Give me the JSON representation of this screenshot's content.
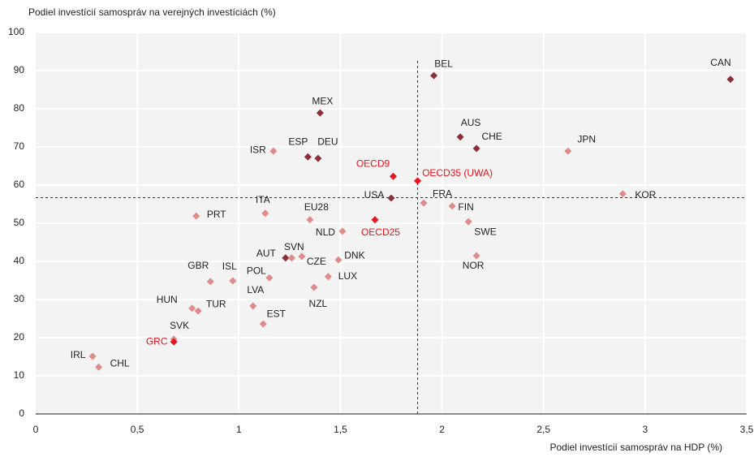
{
  "chart_data": {
    "type": "scatter",
    "ylabel": "Podiel investícií samospráv na verejných investíciách (%)",
    "xlabel": "Podiel investícií samospráv na HDP (%)",
    "xlim": [
      0,
      3.5
    ],
    "ylim": [
      0,
      100
    ],
    "xticks": [
      0,
      {
        "value": 0.5,
        "label": "0,5"
      },
      1,
      {
        "value": 1.5,
        "label": "1,5"
      },
      2,
      {
        "value": 2.5,
        "label": "2,5"
      },
      3,
      {
        "value": 3.5,
        "label": "3,5"
      }
    ],
    "yticks": [
      0,
      10,
      20,
      30,
      40,
      50,
      60,
      70,
      80,
      90,
      100
    ],
    "grid": true,
    "reference_lines": {
      "x": 1.88,
      "y": 56.7
    },
    "points": [
      {
        "label": "CAN",
        "x": 3.42,
        "y": 87.7,
        "color": "#8c2f39"
      },
      {
        "label": "BEL",
        "x": 1.96,
        "y": 88.7,
        "color": "#8c2f39"
      },
      {
        "label": "MEX",
        "x": 1.4,
        "y": 78.9,
        "color": "#8c2f39"
      },
      {
        "label": "AUS",
        "x": 2.09,
        "y": 72.6,
        "color": "#8c2f39"
      },
      {
        "label": "CHE",
        "x": 2.17,
        "y": 69.6,
        "color": "#8c2f39"
      },
      {
        "label": "JPN",
        "x": 2.62,
        "y": 68.9,
        "color": "#e08a8a"
      },
      {
        "label": "ISR",
        "x": 1.17,
        "y": 68.9,
        "color": "#e08a8a"
      },
      {
        "label": "ESP",
        "x": 1.34,
        "y": 67.4,
        "color": "#8c2f39"
      },
      {
        "label": "DEU",
        "x": 1.39,
        "y": 67.0,
        "color": "#8c2f39"
      },
      {
        "label": "OECD9",
        "x": 1.76,
        "y": 62.3,
        "color": "#e8141e"
      },
      {
        "label": "OECD35 (UWA)",
        "x": 1.88,
        "y": 61.1,
        "color": "#e8141e"
      },
      {
        "label": "USA",
        "x": 1.75,
        "y": 56.6,
        "color": "#8c2f39"
      },
      {
        "label": "FRA",
        "x": 1.91,
        "y": 55.3,
        "color": "#e08a8a"
      },
      {
        "label": "KOR",
        "x": 2.89,
        "y": 57.7,
        "color": "#e08a8a"
      },
      {
        "label": "ITA",
        "x": 1.13,
        "y": 52.6,
        "color": "#e08a8a"
      },
      {
        "label": "PRT",
        "x": 0.79,
        "y": 51.9,
        "color": "#e08a8a"
      },
      {
        "label": "EU28",
        "x": 1.35,
        "y": 50.9,
        "color": "#e08a8a"
      },
      {
        "label": "OECD25",
        "x": 1.67,
        "y": 50.9,
        "color": "#e8141e"
      },
      {
        "label": "FIN",
        "x": 2.05,
        "y": 54.5,
        "color": "#e08a8a"
      },
      {
        "label": "SWE",
        "x": 2.13,
        "y": 50.4,
        "color": "#e08a8a"
      },
      {
        "label": "NLD",
        "x": 1.51,
        "y": 47.9,
        "color": "#e08a8a"
      },
      {
        "label": "NOR",
        "x": 2.17,
        "y": 41.5,
        "color": "#e08a8a"
      },
      {
        "label": "AUT",
        "x": 1.23,
        "y": 40.9,
        "color": "#8c2f39"
      },
      {
        "label": "SVN",
        "x": 1.26,
        "y": 40.9,
        "color": "#e08a8a"
      },
      {
        "label": "CZE",
        "x": 1.31,
        "y": 41.3,
        "color": "#e08a8a"
      },
      {
        "label": "DNK",
        "x": 1.49,
        "y": 40.4,
        "color": "#e08a8a"
      },
      {
        "label": "POL",
        "x": 1.15,
        "y": 35.7,
        "color": "#e08a8a"
      },
      {
        "label": "LUX",
        "x": 1.44,
        "y": 36.0,
        "color": "#e08a8a"
      },
      {
        "label": "GBR",
        "x": 0.86,
        "y": 34.7,
        "color": "#e08a8a"
      },
      {
        "label": "ISL",
        "x": 0.97,
        "y": 34.9,
        "color": "#e08a8a"
      },
      {
        "label": "NZL",
        "x": 1.37,
        "y": 33.2,
        "color": "#e08a8a"
      },
      {
        "label": "HUN",
        "x": 0.77,
        "y": 27.7,
        "color": "#e08a8a"
      },
      {
        "label": "TUR",
        "x": 0.8,
        "y": 27.0,
        "color": "#e08a8a"
      },
      {
        "label": "LVA",
        "x": 1.07,
        "y": 28.3,
        "color": "#e08a8a"
      },
      {
        "label": "EST",
        "x": 1.12,
        "y": 23.6,
        "color": "#e08a8a"
      },
      {
        "label": "SVK",
        "x": 0.68,
        "y": 19.6,
        "color": "#e08a8a"
      },
      {
        "label": "GRC",
        "x": 0.68,
        "y": 18.9,
        "color": "#e8141e"
      },
      {
        "label": "IRL",
        "x": 0.28,
        "y": 15.1,
        "color": "#e08a8a"
      },
      {
        "label": "CHL",
        "x": 0.31,
        "y": 12.3,
        "color": "#e08a8a"
      }
    ]
  }
}
